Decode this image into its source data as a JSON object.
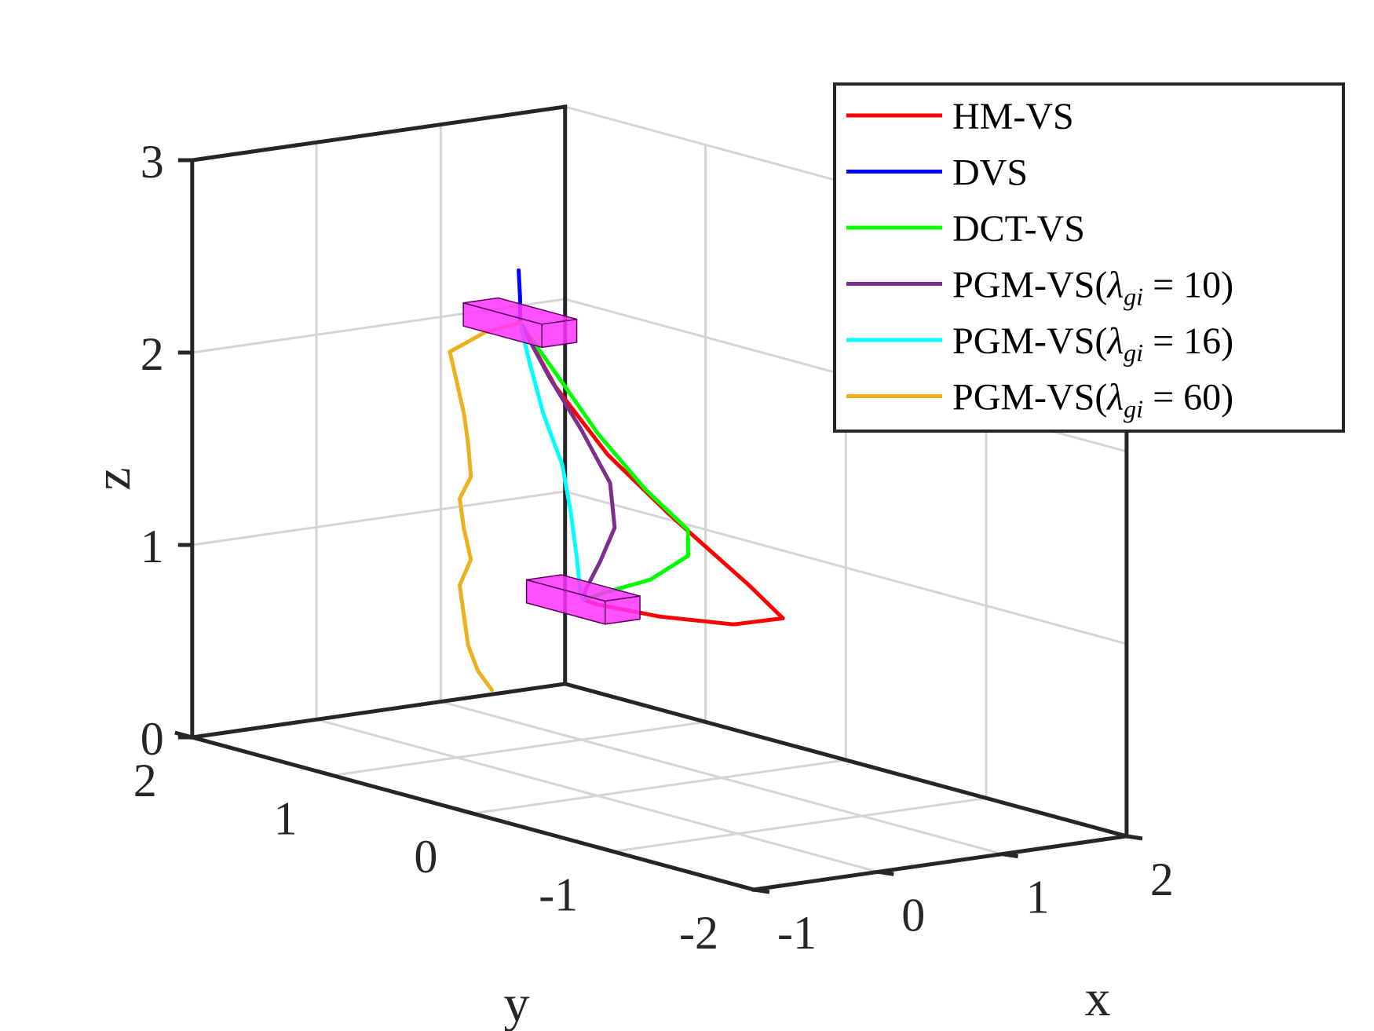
{
  "chart_data": {
    "type": "line3d",
    "title": "",
    "xlabel": "x",
    "ylabel": "y",
    "zlabel": "z",
    "xlim": [
      -1,
      2
    ],
    "ylim": [
      -2,
      2
    ],
    "zlim": [
      0,
      3
    ],
    "x_ticks": [
      "-1",
      "0",
      "1",
      "2"
    ],
    "y_ticks": [
      "2",
      "1",
      "0",
      "-1",
      "-2"
    ],
    "z_ticks": [
      "0",
      "1",
      "2",
      "3"
    ],
    "grid": true,
    "legend_position": "top-right",
    "camera_box": {
      "initial_pose": [
        0.0,
        0.55,
        2.35
      ],
      "final_pose": [
        0.0,
        0.1,
        1.0
      ]
    },
    "series": [
      {
        "name": "HM-VS",
        "color": "#ff0000",
        "legend": {
          "prefix": "HM-VS",
          "greek": "",
          "sub": "",
          "suffix": ""
        },
        "points": [
          [
            0.0,
            0.55,
            2.35
          ],
          [
            0.06,
            0.35,
            2.05
          ],
          [
            0.14,
            0.05,
            1.75
          ],
          [
            0.24,
            -0.3,
            1.5
          ],
          [
            0.42,
            -0.7,
            1.2
          ],
          [
            0.5,
            -0.88,
            1.05
          ],
          [
            0.42,
            -0.6,
            0.97
          ],
          [
            0.22,
            -0.25,
            0.96
          ],
          [
            0.05,
            0.05,
            0.98
          ],
          [
            0.0,
            0.1,
            1.0
          ]
        ]
      },
      {
        "name": "DVS",
        "color": "#0000ff",
        "legend": {
          "prefix": "DVS",
          "greek": "",
          "sub": "",
          "suffix": ""
        },
        "points": [
          [
            0.0,
            0.55,
            2.35
          ],
          [
            0.0,
            0.55,
            2.48
          ],
          [
            0.0,
            0.56,
            2.62
          ]
        ]
      },
      {
        "name": "DCT-VS",
        "color": "#00ff00",
        "legend": {
          "prefix": "DCT-VS",
          "greek": "",
          "sub": "",
          "suffix": ""
        },
        "points": [
          [
            0.0,
            0.55,
            2.35
          ],
          [
            0.06,
            0.3,
            2.08
          ],
          [
            0.12,
            0.1,
            1.85
          ],
          [
            0.22,
            -0.15,
            1.6
          ],
          [
            0.3,
            -0.38,
            1.43
          ],
          [
            0.28,
            -0.4,
            1.3
          ],
          [
            0.18,
            -0.22,
            1.15
          ],
          [
            0.08,
            -0.02,
            1.06
          ],
          [
            0.0,
            0.1,
            1.0
          ]
        ]
      },
      {
        "name": "PGM-VS(λgi = 10)",
        "color": "#7e2f8e",
        "legend": {
          "prefix": "PGM-VS(",
          "greek": "λ",
          "sub": "gi",
          "suffix": " = 10)"
        },
        "points": [
          [
            0.0,
            0.55,
            2.35
          ],
          [
            0.04,
            0.38,
            2.1
          ],
          [
            0.1,
            0.2,
            1.85
          ],
          [
            0.16,
            0.05,
            1.6
          ],
          [
            0.14,
            0.0,
            1.38
          ],
          [
            0.08,
            0.05,
            1.2
          ],
          [
            0.02,
            0.1,
            1.05
          ],
          [
            0.0,
            0.1,
            1.0
          ]
        ]
      },
      {
        "name": "PGM-VS(λgi = 16)",
        "color": "#00ffff",
        "legend": {
          "prefix": "PGM-VS(",
          "greek": "λ",
          "sub": "gi",
          "suffix": " = 16)"
        },
        "points": [
          [
            0.0,
            0.55,
            2.35
          ],
          [
            0.02,
            0.5,
            2.15
          ],
          [
            0.04,
            0.42,
            1.9
          ],
          [
            0.08,
            0.32,
            1.65
          ],
          [
            0.1,
            0.28,
            1.42
          ],
          [
            0.06,
            0.2,
            1.2
          ],
          [
            0.0,
            0.12,
            1.03
          ],
          [
            0.0,
            0.1,
            1.0
          ]
        ]
      },
      {
        "name": "PGM-VS(λgi = 60)",
        "color": "#edb120",
        "legend": {
          "prefix": "PGM-VS(",
          "greek": "λ",
          "sub": "gi",
          "suffix": " = 60)"
        },
        "points": [
          [
            0.0,
            0.55,
            2.35
          ],
          [
            0.0,
            0.8,
            2.25
          ],
          [
            0.0,
            1.05,
            2.1
          ],
          [
            0.0,
            1.0,
            1.95
          ],
          [
            0.0,
            0.95,
            1.8
          ],
          [
            0.0,
            0.92,
            1.65
          ],
          [
            0.0,
            0.9,
            1.48
          ],
          [
            0.0,
            0.98,
            1.35
          ],
          [
            0.0,
            0.95,
            1.2
          ],
          [
            0.0,
            0.9,
            1.05
          ],
          [
            0.0,
            0.98,
            0.9
          ],
          [
            0.0,
            0.95,
            0.75
          ],
          [
            0.0,
            0.92,
            0.6
          ],
          [
            0.0,
            0.85,
            0.48
          ],
          [
            0.0,
            0.75,
            0.4
          ]
        ]
      }
    ]
  }
}
